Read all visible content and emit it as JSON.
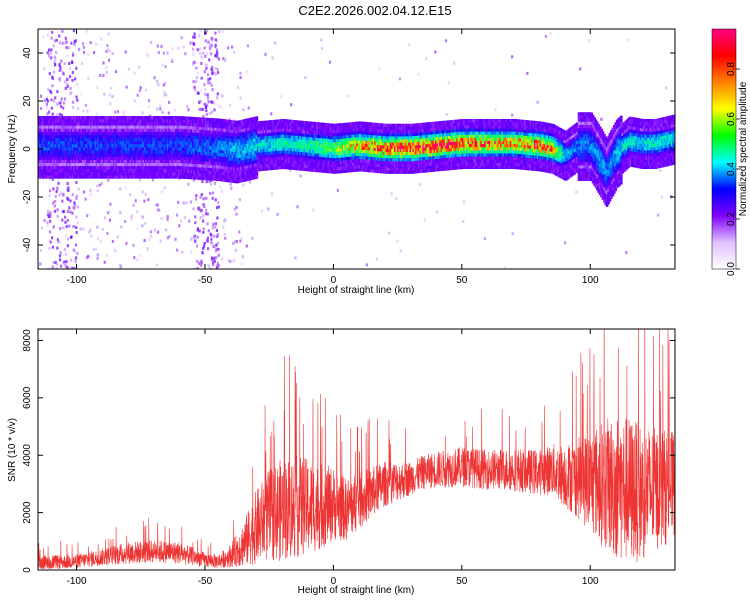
{
  "figure_title": "C2E2.2026.002.04.12.E15",
  "chart_data": [
    {
      "type": "heatmap",
      "title": "C2E2.2026.002.04.12.E15",
      "xlabel": "Height of straight line (km)",
      "ylabel": "Frequency (Hz)",
      "xlim": [
        -115,
        133
      ],
      "ylim": [
        -50,
        50
      ],
      "xticks": [
        -100,
        -50,
        0,
        50,
        100
      ],
      "yticks": [
        -40,
        -20,
        0,
        20,
        40
      ],
      "colorbar": {
        "label": "Normalized spectral amplitude",
        "range": [
          0,
          1
        ],
        "ticks": [
          "0.0",
          "0.2",
          "0.4",
          "0.6",
          "0.8"
        ],
        "colors": [
          "#ffffff",
          "#e0c0ff",
          "#8000ff",
          "#0000ff",
          "#00ffff",
          "#00ff00",
          "#ffff00",
          "#ff8000",
          "#ff0000",
          "#ff0080"
        ]
      },
      "ridge_center_hz": {
        "x": [
          -112,
          -100,
          -80,
          -60,
          -45,
          -38,
          -30,
          -20,
          -10,
          0,
          10,
          20,
          30,
          40,
          50,
          60,
          70,
          80,
          85,
          90,
          95,
          100,
          104,
          106,
          110,
          115,
          120,
          125,
          133
        ],
        "y": [
          2,
          2,
          2,
          2,
          1,
          0,
          2,
          3,
          2,
          1,
          2,
          1,
          1,
          2,
          3,
          3,
          3,
          2,
          1,
          -2,
          2,
          2,
          -5,
          -9,
          -1,
          4,
          3,
          3,
          5
        ],
        "peak_amplitude": [
          0.25,
          0.25,
          0.25,
          0.25,
          0.3,
          0.35,
          0.4,
          0.45,
          0.5,
          0.6,
          0.75,
          0.85,
          0.9,
          0.9,
          0.85,
          0.8,
          0.75,
          0.85,
          0.8,
          0.35,
          0.3,
          0.3,
          0.35,
          0.3,
          0.35,
          0.45,
          0.4,
          0.45,
          0.4
        ]
      }
    },
    {
      "type": "line",
      "xlabel": "Height of straight line (km)",
      "ylabel": "SNR (10 * v/v)",
      "xlim": [
        -115,
        133
      ],
      "ylim": [
        0,
        8400
      ],
      "xticks": [
        -100,
        -50,
        0,
        50,
        100
      ],
      "yticks": [
        0,
        2000,
        4000,
        6000,
        8000
      ],
      "series": [
        {
          "name": "SNR",
          "color": "#ee3333",
          "x": [
            -115,
            -100,
            -90,
            -80,
            -70,
            -60,
            -50,
            -45,
            -40,
            -35,
            -30,
            -25,
            -20,
            -15,
            -10,
            -5,
            0,
            5,
            10,
            15,
            20,
            25,
            30,
            35,
            40,
            50,
            60,
            70,
            80,
            85,
            90,
            95,
            100,
            105,
            110,
            115,
            120,
            125,
            130,
            133
          ],
          "y": [
            250,
            300,
            450,
            600,
            650,
            600,
            350,
            300,
            500,
            900,
            1500,
            1900,
            2100,
            2200,
            2200,
            2200,
            2300,
            2100,
            2400,
            2700,
            3000,
            3100,
            3200,
            3400,
            3500,
            3600,
            3500,
            3500,
            3400,
            3500,
            3300,
            3200,
            3100,
            3000,
            2900,
            2800,
            2700,
            2800,
            2900,
            3000
          ],
          "spread": [
            250,
            250,
            300,
            400,
            400,
            400,
            250,
            250,
            400,
            800,
            1300,
            1600,
            1800,
            1800,
            1700,
            1500,
            1300,
            1100,
            1000,
            900,
            800,
            700,
            600,
            600,
            650,
            700,
            700,
            750,
            800,
            900,
            1100,
            1400,
            1800,
            2200,
            2600,
            2600,
            2400,
            2200,
            2000,
            1800
          ]
        }
      ]
    }
  ]
}
